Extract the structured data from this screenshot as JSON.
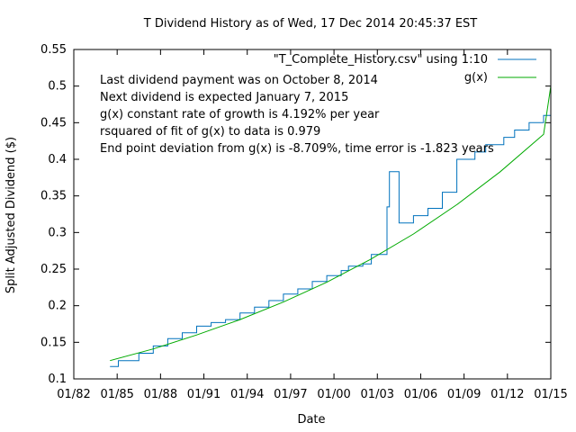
{
  "chart_data": {
    "type": "line",
    "title": "T Dividend History as of Wed, 17 Dec 2014 20:45:37 EST",
    "xlabel": "Date",
    "ylabel": "Split Adjusted Dividend ($)",
    "xlim": [
      "1982-01-01",
      "2015-01-01"
    ],
    "ylim": [
      0.1,
      0.55
    ],
    "x_ticks": [
      "01/82",
      "01/85",
      "01/88",
      "01/91",
      "01/94",
      "01/97",
      "01/00",
      "01/03",
      "01/06",
      "01/09",
      "01/12",
      "01/15"
    ],
    "y_ticks": [
      "0.1",
      "0.15",
      "0.2",
      "0.25",
      "0.3",
      "0.35",
      "0.4",
      "0.45",
      "0.5",
      "0.55"
    ],
    "grid": false,
    "legend": "top-right",
    "annotations": [
      "Last dividend payment was on October 8, 2014",
      "Next dividend is expected January 7, 2015",
      "g(x) constant rate of growth is  4.192% per year",
      "rsquared of fit of g(x) to data is  0.979",
      "End point deviation from g(x) is   -8.709%, time error is   -1.823 years"
    ],
    "series": [
      {
        "name": "\"T_Complete_History.csv\" using 1:10",
        "color": "#0072bd",
        "style": "steps",
        "points": [
          [
            "1984-07-01",
            0.117
          ],
          [
            "1985-02-01",
            0.125
          ],
          [
            "1986-07-01",
            0.135
          ],
          [
            "1987-07-01",
            0.145
          ],
          [
            "1988-07-01",
            0.155
          ],
          [
            "1989-07-01",
            0.163
          ],
          [
            "1990-07-01",
            0.172
          ],
          [
            "1991-07-01",
            0.177
          ],
          [
            "1992-07-01",
            0.181
          ],
          [
            "1993-07-01",
            0.19
          ],
          [
            "1994-07-01",
            0.198
          ],
          [
            "1995-07-01",
            0.207
          ],
          [
            "1996-07-01",
            0.216
          ],
          [
            "1997-07-01",
            0.223
          ],
          [
            "1998-07-01",
            0.233
          ],
          [
            "1999-07-01",
            0.241
          ],
          [
            "2000-07-01",
            0.248
          ],
          [
            "2001-01-01",
            0.254
          ],
          [
            "2002-01-01",
            0.257
          ],
          [
            "2002-08-01",
            0.27
          ],
          [
            "2003-09-01",
            0.335
          ],
          [
            "2003-11-01",
            0.383
          ],
          [
            "2004-07-01",
            0.313
          ],
          [
            "2005-07-01",
            0.323
          ],
          [
            "2006-07-01",
            0.333
          ],
          [
            "2007-07-01",
            0.355
          ],
          [
            "2008-07-01",
            0.4
          ],
          [
            "2009-10-01",
            0.41
          ],
          [
            "2010-07-01",
            0.42
          ],
          [
            "2011-10-01",
            0.43
          ],
          [
            "2012-07-01",
            0.44
          ],
          [
            "2013-07-01",
            0.45
          ],
          [
            "2014-07-01",
            0.46
          ],
          [
            "2015-01-01",
            0.46
          ]
        ]
      },
      {
        "name": "g(x)",
        "color": "#00aa00",
        "style": "line",
        "growth_rate_percent_per_year": 4.192,
        "points": [
          [
            "1984-07-01",
            0.125
          ],
          [
            "1987-07-01",
            0.141
          ],
          [
            "1990-07-01",
            0.16
          ],
          [
            "1993-07-01",
            0.181
          ],
          [
            "1996-07-01",
            0.205
          ],
          [
            "1999-07-01",
            0.232
          ],
          [
            "2002-07-01",
            0.263
          ],
          [
            "2005-07-01",
            0.298
          ],
          [
            "2008-07-01",
            0.338
          ],
          [
            "2011-07-01",
            0.383
          ],
          [
            "2014-07-01",
            0.434
          ],
          [
            "2015-01-01",
            0.5
          ]
        ]
      }
    ]
  }
}
